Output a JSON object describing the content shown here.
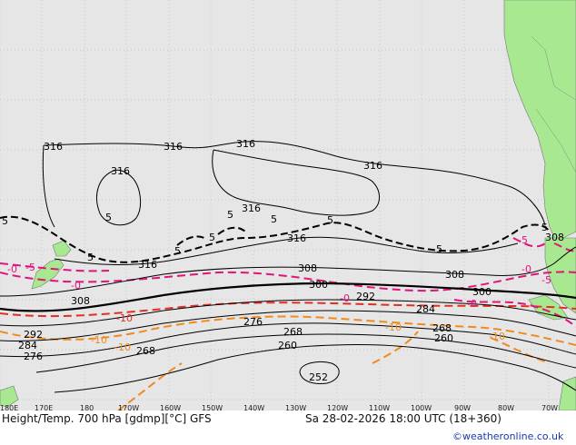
{
  "colors": {
    "ocean": "#e6e6e6",
    "land": "#a8e890",
    "grid": "#bdbdbd",
    "height": "#000000",
    "temp_neg": "#e0147a",
    "temp_zero": "#e03020",
    "temp_pos": "#f08a20",
    "credit": "#1a3aa8"
  },
  "title": {
    "left": "Height/Temp. 700 hPa [gdmp][°C] GFS",
    "right": "Sa 28-02-2026 18:00 UTC (18+360)"
  },
  "credit": "©weatheronline.co.uk",
  "axis_labels": [
    "180E",
    "170E",
    "180",
    "170W",
    "160W",
    "150W",
    "140W",
    "130W",
    "120W",
    "110W",
    "100W",
    "90W",
    "80W",
    "70W"
  ],
  "height_labels": [
    "316",
    "316",
    "316",
    "316",
    "316",
    "316",
    "316",
    "316",
    "308",
    "308",
    "308",
    "308",
    "300",
    "300",
    "292",
    "292",
    "284",
    "284",
    "276",
    "276",
    "268",
    "268",
    "268",
    "260",
    "260",
    "252",
    "5",
    "5",
    "5",
    "5",
    "5",
    "5",
    "5",
    "5",
    "5",
    "5"
  ],
  "temp_labels": [
    "-0",
    "-0",
    "-0",
    "-0",
    "-0",
    "-5",
    "-5",
    "-5",
    "-10",
    "-10",
    "-10",
    "-10",
    "-10"
  ]
}
